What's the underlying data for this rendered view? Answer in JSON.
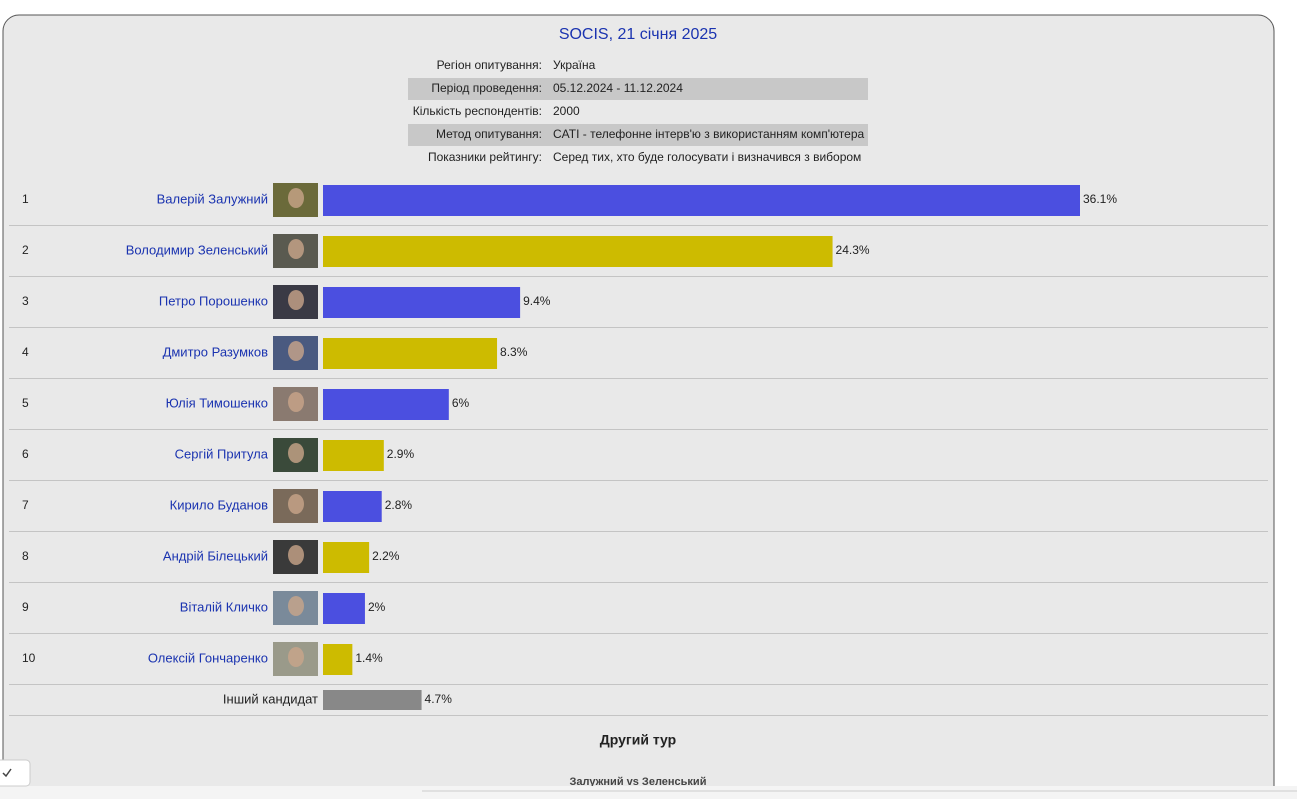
{
  "header": {
    "title": "SOCIS, 21 січня 2025"
  },
  "info": [
    {
      "label": "Регіон опитування:",
      "value": "Україна"
    },
    {
      "label": "Період проведення:",
      "value": "05.12.2024 - 11.12.2024"
    },
    {
      "label": "Кількість респондентів:",
      "value": "2000"
    },
    {
      "label": "Метод опитування:",
      "value": "CATI - телефонне інтерв'ю з використанням комп'ютера"
    },
    {
      "label": "Показники рейтингу:",
      "value": "Серед тих, хто буде голосувати і визначився з вибором"
    }
  ],
  "candidates": [
    {
      "rank": "1",
      "name": "Валерій Залужний",
      "value": 36.1,
      "value_label": "36.1%",
      "color": "#4b4fe0"
    },
    {
      "rank": "2",
      "name": "Володимир Зеленський",
      "value": 24.3,
      "value_label": "24.3%",
      "color": "#cdbb00"
    },
    {
      "rank": "3",
      "name": "Петро Порошенко",
      "value": 9.4,
      "value_label": "9.4%",
      "color": "#4b4fe0"
    },
    {
      "rank": "4",
      "name": "Дмитро Разумков",
      "value": 8.3,
      "value_label": "8.3%",
      "color": "#cdbb00"
    },
    {
      "rank": "5",
      "name": "Юлія Тимошенко",
      "value": 6,
      "value_label": "6%",
      "color": "#4b4fe0"
    },
    {
      "rank": "6",
      "name": "Сергій Притула",
      "value": 2.9,
      "value_label": "2.9%",
      "color": "#cdbb00"
    },
    {
      "rank": "7",
      "name": "Кирило Буданов",
      "value": 2.8,
      "value_label": "2.8%",
      "color": "#4b4fe0"
    },
    {
      "rank": "8",
      "name": "Андрій Білецький",
      "value": 2.2,
      "value_label": "2.2%",
      "color": "#cdbb00"
    },
    {
      "rank": "9",
      "name": "Віталій Кличко",
      "value": 2,
      "value_label": "2%",
      "color": "#4b4fe0"
    },
    {
      "rank": "10",
      "name": "Олексій Гончаренко",
      "value": 1.4,
      "value_label": "1.4%",
      "color": "#cdbb00"
    }
  ],
  "other": {
    "name": "Інший кандидат",
    "value": 4.7,
    "value_label": "4.7%",
    "color": "#888888"
  },
  "second_round": {
    "title": "Другий тур",
    "subtitle": "Залужний vs Зеленський"
  }
}
